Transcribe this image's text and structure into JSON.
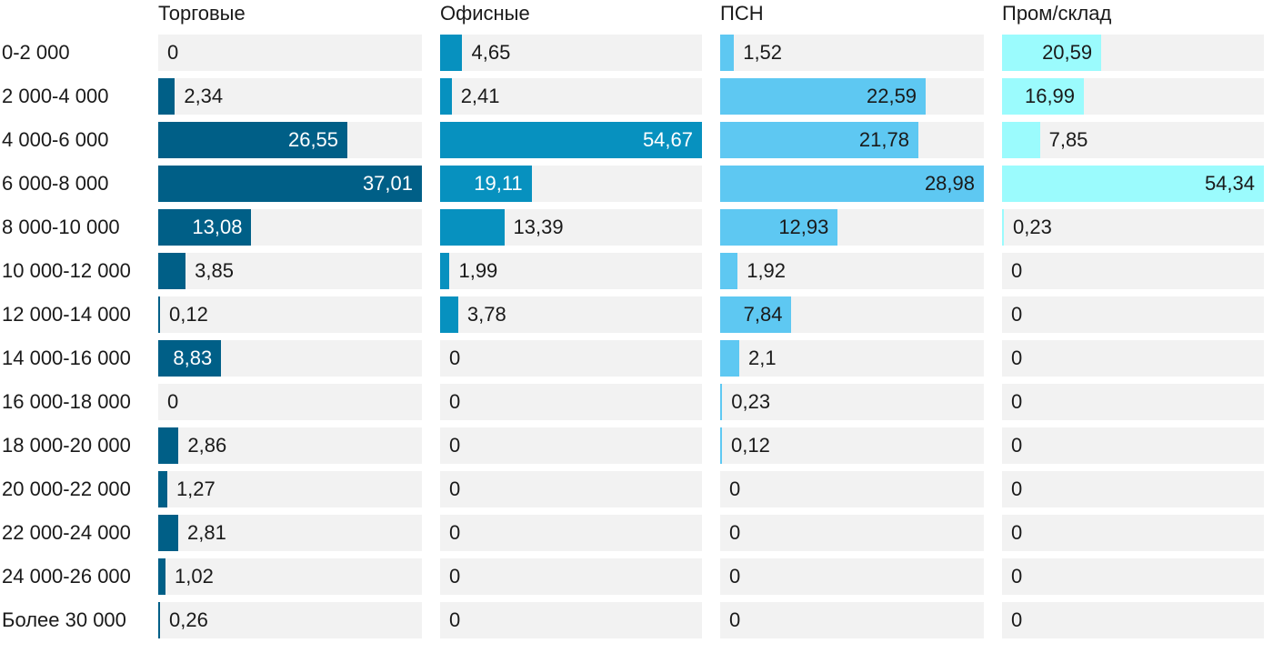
{
  "chart_data": {
    "type": "bar",
    "orientation": "horizontal",
    "layout": "small-multiples",
    "categories": [
      "0-2 000",
      "2 000-4 000",
      "4 000-6 000",
      "6 000-8 000",
      "8 000-10 000",
      "10 000-12 000",
      "12 000-14 000",
      "14 000-16 000",
      "16 000-18 000",
      "18 000-20 000",
      "20 000-22 000",
      "22 000-24 000",
      "24 000-26 000",
      "Более 30 000"
    ],
    "series": [
      {
        "name": "Торговые",
        "color": "#005f87",
        "max": 37.01,
        "values": [
          0,
          2.34,
          26.55,
          37.01,
          13.08,
          3.85,
          0.12,
          8.83,
          0,
          2.86,
          1.27,
          2.81,
          1.02,
          0.26
        ],
        "labels": [
          "0",
          "2,34",
          "26,55",
          "37,01",
          "13,08",
          "3,85",
          "0,12",
          "8,83",
          "0",
          "2,86",
          "1,27",
          "2,81",
          "1,02",
          "0,26"
        ]
      },
      {
        "name": "Офисные",
        "color": "#0791bf",
        "max": 54.67,
        "values": [
          4.65,
          2.41,
          54.67,
          19.11,
          13.39,
          1.99,
          3.78,
          0,
          0,
          0,
          0,
          0,
          0,
          0
        ],
        "labels": [
          "4,65",
          "2,41",
          "54,67",
          "19,11",
          "13,39",
          "1,99",
          "3,78",
          "0",
          "0",
          "0",
          "0",
          "0",
          "0",
          "0"
        ]
      },
      {
        "name": "ПСН",
        "color": "#5ec8f2",
        "max": 28.98,
        "values": [
          1.52,
          22.59,
          21.78,
          28.98,
          12.93,
          1.92,
          7.84,
          2.1,
          0.23,
          0.12,
          0,
          0,
          0,
          0
        ],
        "labels": [
          "1,52",
          "22,59",
          "21,78",
          "28,98",
          "12,93",
          "1,92",
          "7,84",
          "2,1",
          "0,23",
          "0,12",
          "0",
          "0",
          "0",
          "0"
        ]
      },
      {
        "name": "Пром/склад",
        "color": "#9bfbfd",
        "max": 54.34,
        "values": [
          20.59,
          16.99,
          7.85,
          54.34,
          0.23,
          0,
          0,
          0,
          0,
          0,
          0,
          0,
          0,
          0
        ],
        "labels": [
          "20,59",
          "16,99",
          "7,85",
          "54,34",
          "0,23",
          "0",
          "0",
          "0",
          "0",
          "0",
          "0",
          "0",
          "0",
          "0"
        ]
      }
    ],
    "xlabel": "",
    "ylabel": ""
  }
}
